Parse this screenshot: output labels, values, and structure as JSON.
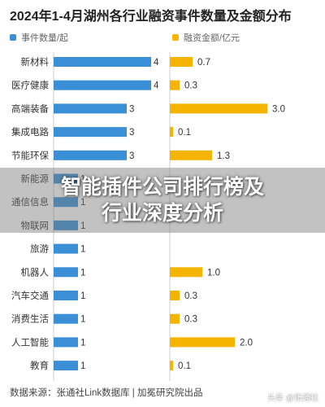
{
  "chart_data": {
    "type": "bar",
    "title": "2024年1-4月湖州各行业融资事件数量及金额分布",
    "categories": [
      "新材料",
      "医疗健康",
      "高端装备",
      "集成电路",
      "节能环保",
      "新能源",
      "通信信息",
      "物联网",
      "旅游",
      "机器人",
      "汽车交通",
      "消费生活",
      "人工智能",
      "教育"
    ],
    "category_labels": [
      "新材料",
      "医疗健康",
      "高端装备",
      "集成电路",
      "节能环保",
      "新能源",
      "通信信息",
      "物联网",
      "旅游",
      "机器人",
      "汽车交通",
      "消费生活",
      "人工智能",
      "教育"
    ],
    "series": [
      {
        "name": "事件数量/起",
        "color": "#3a8fd6",
        "values": [
          4,
          4,
          3,
          3,
          3,
          1,
          1,
          1,
          1,
          1,
          1,
          1,
          1,
          1
        ]
      },
      {
        "name": "融资金额/亿元",
        "color": "#f5b400",
        "values": [
          0.7,
          0.3,
          3.0,
          0.1,
          1.3,
          null,
          null,
          null,
          null,
          1.0,
          0.3,
          0.3,
          2.0,
          0.1
        ]
      }
    ],
    "value_labels": {
      "count": [
        "4",
        "4",
        "3",
        "3",
        "3",
        "1",
        "1",
        "1",
        "1",
        "1",
        "1",
        "1",
        "1",
        "1"
      ],
      "amount": [
        "0.7",
        "0.3",
        "3.0",
        "0.1",
        "1.3",
        null,
        null,
        null,
        null,
        "1.0",
        "0.3",
        "0.3",
        "2.0",
        "0.1"
      ]
    },
    "xlim_count": [
      0,
      4.8
    ],
    "xlim_amount": [
      0,
      3.3
    ],
    "legend_position": "top"
  },
  "legend": {
    "count_label": "事件数量/起",
    "amount_label": "融资金额/亿元"
  },
  "overlay": {
    "line1": "智能插件公司排行榜及",
    "line2": "行业深度分析"
  },
  "source": "数据来源：张通社Link数据库 | 加冕研究院出品",
  "watermark": "头条 @张通社"
}
